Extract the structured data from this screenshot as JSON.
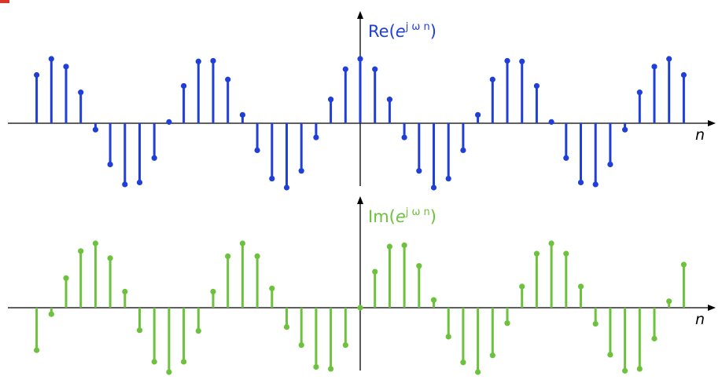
{
  "colors": {
    "real": "#1f3fd8",
    "imag": "#6cc23c",
    "axis": "#000000",
    "accent": "#d9352b"
  },
  "chart_data": [
    {
      "type": "stem",
      "title": "",
      "ylabel_base": "Re(",
      "ylabel_exp": "e",
      "ylabel_sup": "j ω n",
      "ylabel_close": ")",
      "xlabel": "n",
      "color": "#1f3fd8",
      "grid": false,
      "x_range": [
        -23,
        23
      ],
      "ylim": [
        -1,
        1
      ],
      "n": [
        -22,
        -21,
        -20,
        -19,
        -18,
        -17,
        -16,
        -15,
        -14,
        -13,
        -12,
        -11,
        -10,
        -9,
        -8,
        -7,
        -6,
        -5,
        -4,
        -3,
        -2,
        -1,
        0,
        1,
        2,
        3,
        4,
        5,
        6,
        7,
        8,
        9,
        10,
        11,
        12,
        13,
        14,
        15,
        16,
        17,
        18,
        19,
        20,
        21,
        22
      ],
      "values": [
        0.75,
        1.0,
        0.88,
        0.48,
        -0.1,
        -0.64,
        -0.95,
        -0.92,
        -0.54,
        0.02,
        0.58,
        0.96,
        0.97,
        0.68,
        0.13,
        -0.42,
        -0.86,
        -1.0,
        -0.74,
        -0.22,
        0.37,
        0.84,
        1.0,
        0.84,
        0.37,
        -0.22,
        -0.74,
        -1.0,
        -0.86,
        -0.42,
        0.13,
        0.68,
        0.97,
        0.96,
        0.58,
        0.02,
        -0.54,
        -0.92,
        -0.95,
        -0.64,
        -0.1,
        0.48,
        0.88,
        1.0,
        0.75
      ]
    },
    {
      "type": "stem",
      "title": "",
      "ylabel_base": "Im(",
      "ylabel_exp": "e",
      "ylabel_sup": "j ω n",
      "ylabel_close": ")",
      "xlabel": "n",
      "color": "#6cc23c",
      "grid": false,
      "x_range": [
        -23,
        23
      ],
      "ylim": [
        -1,
        1
      ],
      "n": [
        -22,
        -21,
        -20,
        -19,
        -18,
        -17,
        -16,
        -15,
        -14,
        -13,
        -12,
        -11,
        -10,
        -9,
        -8,
        -7,
        -6,
        -5,
        -4,
        -3,
        -2,
        -1,
        0,
        1,
        2,
        3,
        4,
        5,
        6,
        7,
        8,
        9,
        10,
        11,
        12,
        13,
        14,
        15,
        16,
        17,
        18,
        19,
        20,
        21,
        22
      ],
      "values": [
        -0.66,
        -0.1,
        0.46,
        0.88,
        1.0,
        0.77,
        0.25,
        -0.35,
        -0.84,
        -1.0,
        -0.84,
        -0.36,
        0.25,
        0.8,
        1.0,
        0.8,
        0.3,
        -0.3,
        -0.58,
        -0.92,
        -0.95,
        -0.58,
        0.0,
        0.56,
        0.95,
        0.97,
        0.65,
        0.12,
        -0.45,
        -0.85,
        -1.0,
        -0.74,
        -0.24,
        0.33,
        0.84,
        1.0,
        0.84,
        0.33,
        -0.25,
        -0.73,
        -0.98,
        -0.95,
        -0.48,
        0.1,
        0.67
      ]
    }
  ]
}
